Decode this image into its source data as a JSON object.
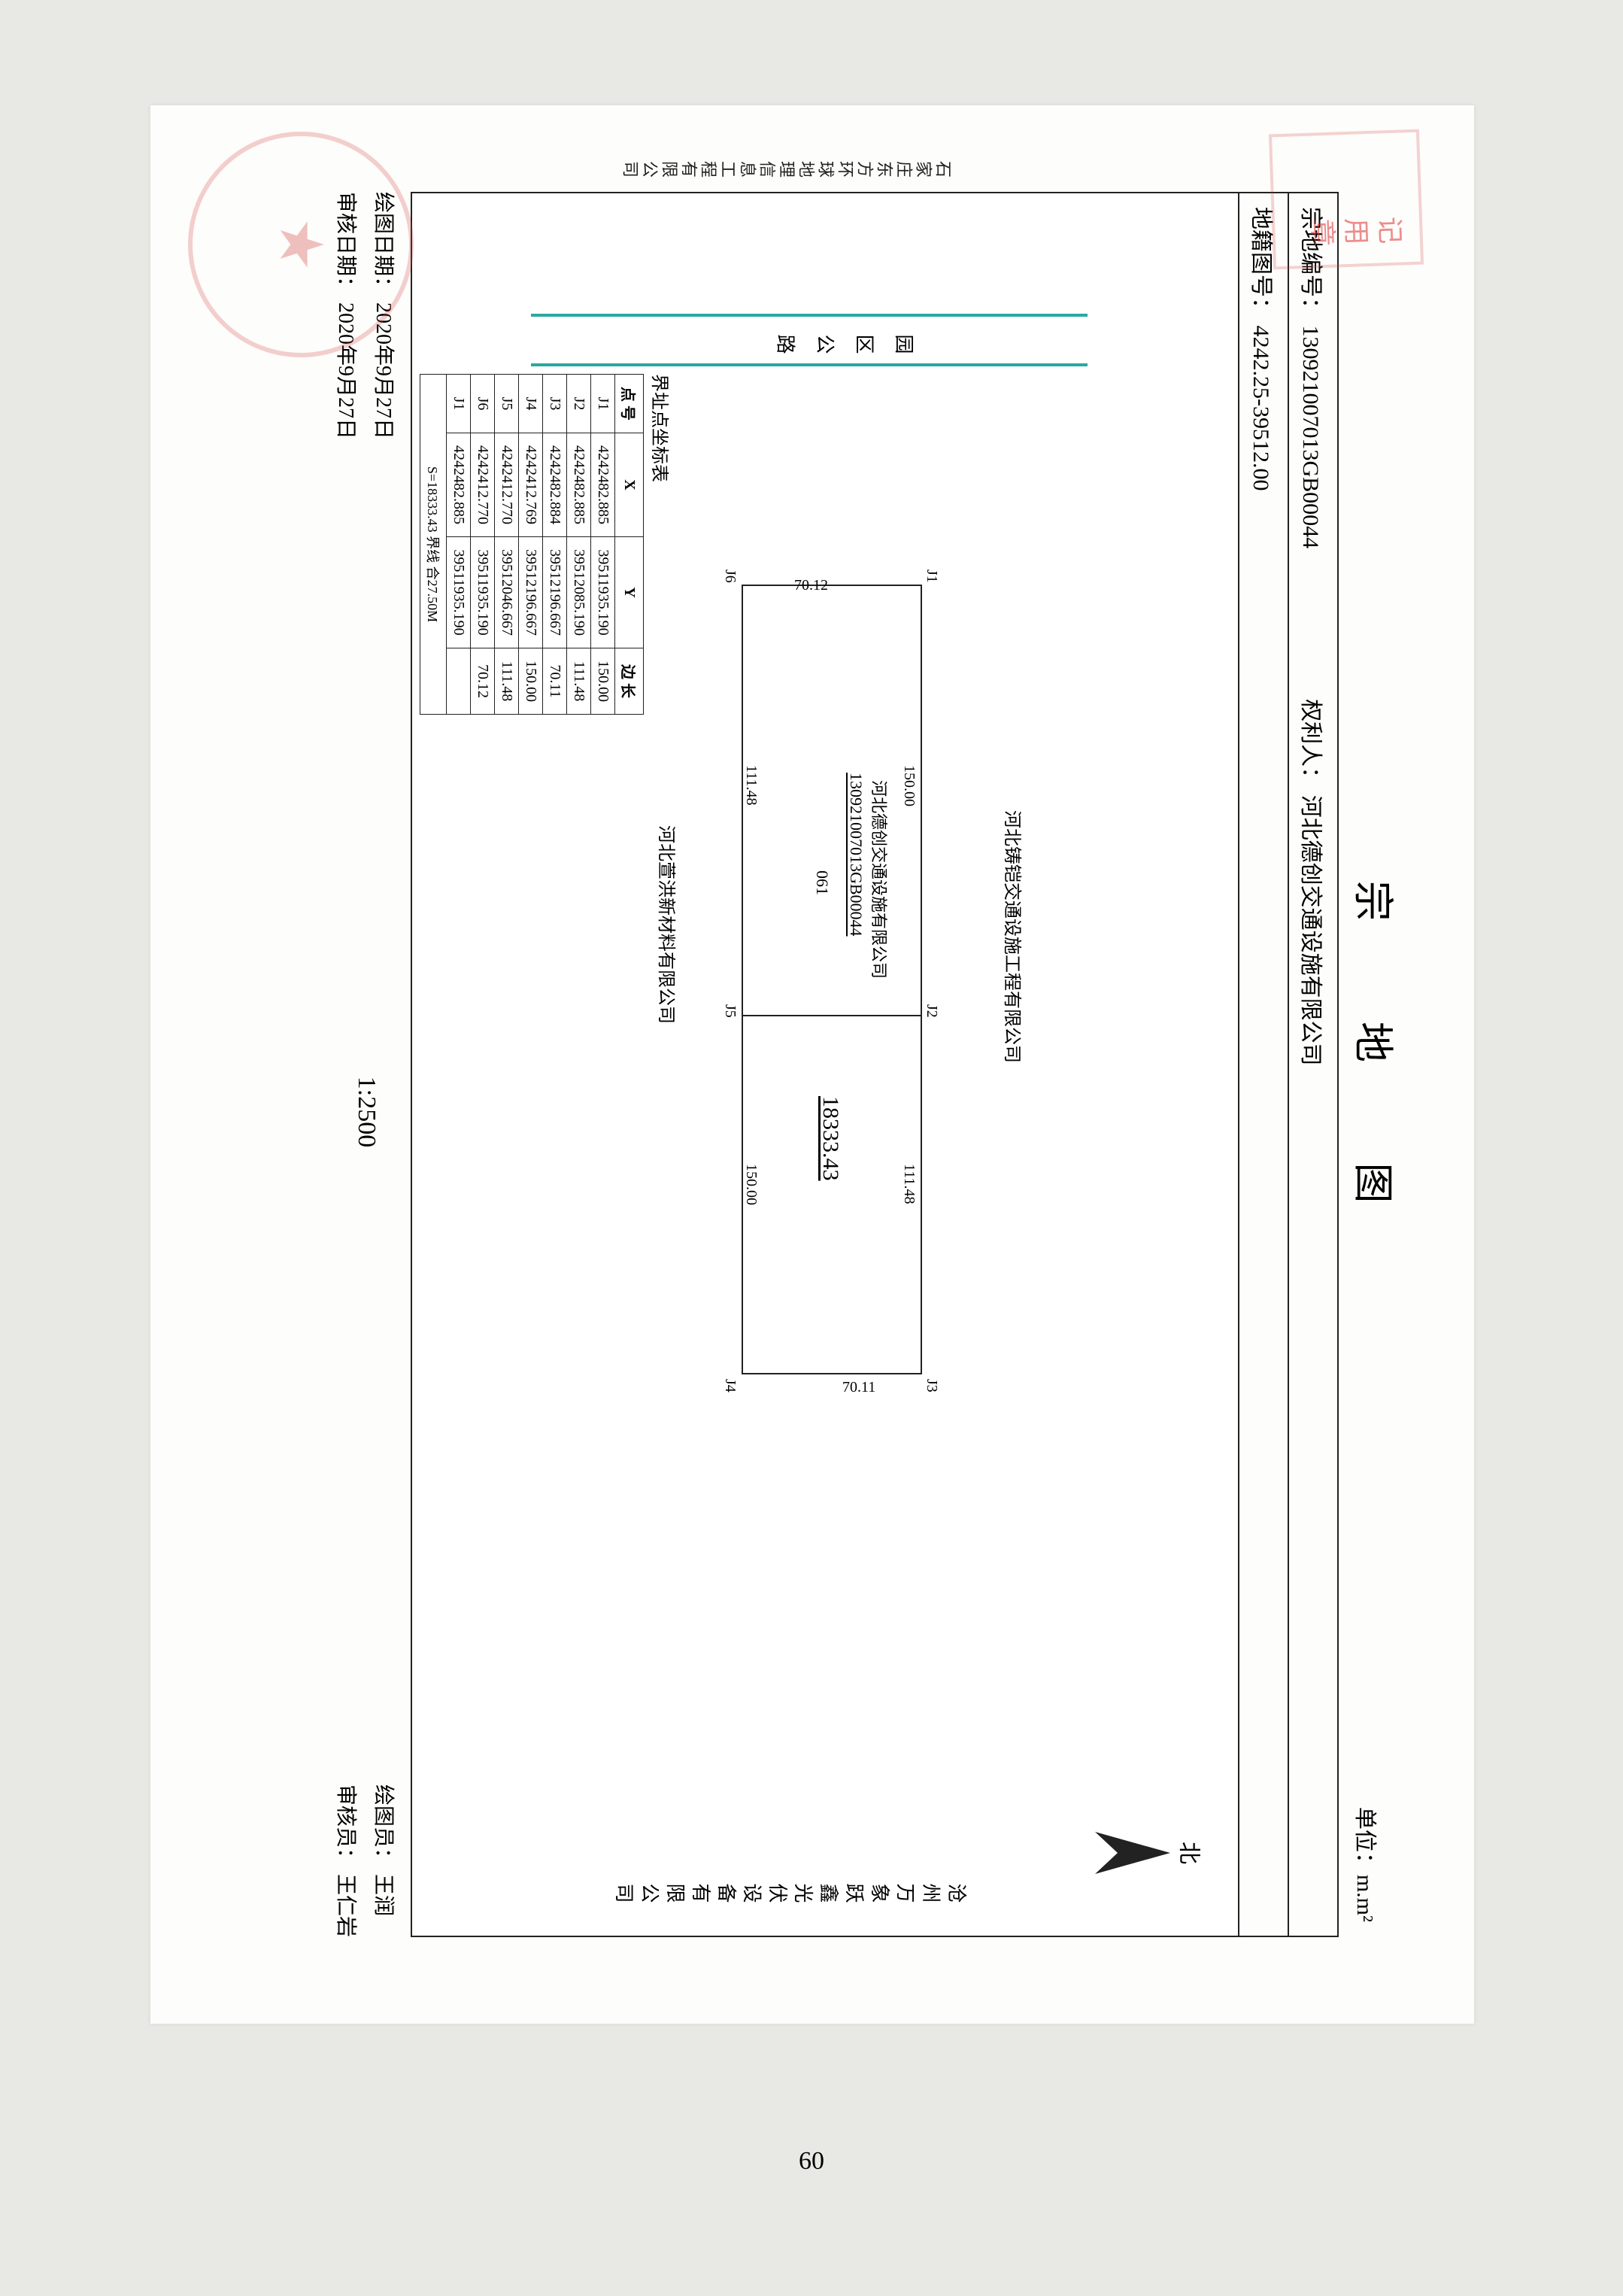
{
  "title": "宗  地  图",
  "unit_label": "单位：m.m²",
  "header": {
    "parcel_no_label": "宗地编号：",
    "parcel_no": "130921007013GB00044",
    "owner_label": "权利人：",
    "owner": "河北德创交通设施有限公司",
    "cadastral_label": "地籍图号：",
    "cadastral": "4242.25-39512.00"
  },
  "north_label": "北",
  "road_west": "园 区 公 路",
  "surveyor_company": "石家庄东方环球地理信息工程有限公司",
  "neighbor_north": "河北铸铠交通设施工程有限公司",
  "neighbor_south": "河北萱洪新材料有限公司",
  "east_company": "沧州万象跃鑫光伏设备有限公司",
  "parcel": {
    "company": "河北德创交通设施有限公司",
    "code": "130921007013GB00044",
    "zone": "061",
    "area": "18333.43",
    "points": [
      "J1",
      "J2",
      "J3",
      "J4",
      "J5",
      "J6"
    ],
    "dims": {
      "j1_j2": "150.00",
      "j2_j3": "111.48",
      "j3_j4": "70.11",
      "j4_j5": "150.00",
      "j5_j6": "111.48",
      "j6_j1": "70.12"
    }
  },
  "coord_title": "界址点坐标表",
  "coord_cols": [
    "点 号",
    "X",
    "Y",
    "边 长"
  ],
  "coord_rows": [
    [
      "J1",
      "4242482.885",
      "39511935.190",
      ""
    ],
    [
      "",
      "",
      "",
      "150.00"
    ],
    [
      "J2",
      "4242482.885",
      "39512085.190",
      ""
    ],
    [
      "",
      "",
      "",
      "111.48"
    ],
    [
      "J3",
      "4242482.884",
      "39512196.667",
      ""
    ],
    [
      "",
      "",
      "",
      "70.11"
    ],
    [
      "J4",
      "4242412.769",
      "39512196.667",
      ""
    ],
    [
      "",
      "",
      "",
      "150.00"
    ],
    [
      "J5",
      "4242412.770",
      "39512046.667",
      ""
    ],
    [
      "",
      "",
      "",
      "111.48"
    ],
    [
      "J6",
      "4242412.770",
      "39511935.190",
      ""
    ],
    [
      "",
      "",
      "",
      "70.12"
    ],
    [
      "J1",
      "4242482.885",
      "39511935.190",
      ""
    ]
  ],
  "coord_summary": "S=18333.43 界线 合27.50M",
  "scale": "1:2500",
  "footer": {
    "draw_date_label": "绘图日期：",
    "draw_date": "2020年9月27日",
    "check_date_label": "审核日期：",
    "check_date": "2020年9月27日",
    "drafter_label": "绘图员：",
    "drafter": "王润",
    "checker_label": "审核员：",
    "checker": "王仁岩"
  },
  "page_number": "60",
  "stamp_top": "记 用 章",
  "colors": {
    "teal": "#2aa8a0",
    "stamp": "#d33a3a",
    "line": "#222222"
  }
}
